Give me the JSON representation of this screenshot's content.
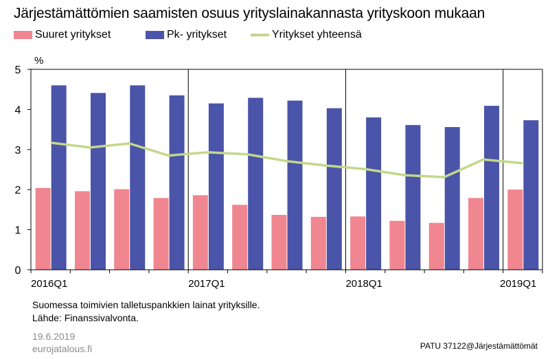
{
  "header": {
    "title": "Järjestämättömien saamisten osuus yrityslainakannasta yrityskoon mukaan"
  },
  "colors": {
    "large": "#f0868f",
    "sme": "#4a54a8",
    "total": "#c2d88a"
  },
  "chart_data": {
    "type": "bar",
    "unit_label": "%",
    "ylim": [
      0,
      5
    ],
    "yticks": [
      "0",
      "1",
      "2",
      "3",
      "4",
      "5"
    ],
    "categories": [
      "2016Q1",
      "2016Q2",
      "2016Q3",
      "2016Q4",
      "2017Q1",
      "2017Q2",
      "2017Q3",
      "2017Q4",
      "2018Q1",
      "2018Q2",
      "2018Q3",
      "2018Q4",
      "2019Q1"
    ],
    "x_tick_labels": [
      "2016Q1",
      "2017Q1",
      "2018Q1",
      "2019Q1"
    ],
    "grid": "vertical lines at year boundaries",
    "legend_position": "top",
    "series": [
      {
        "name": "Suuret yritykset",
        "type": "bar",
        "values": [
          2.04,
          1.96,
          2.01,
          1.79,
          1.86,
          1.62,
          1.37,
          1.32,
          1.33,
          1.22,
          1.17,
          1.79,
          2.0
        ]
      },
      {
        "name": "Pk- yritykset",
        "type": "bar",
        "values": [
          4.6,
          4.41,
          4.6,
          4.35,
          4.15,
          4.29,
          4.22,
          4.03,
          3.8,
          3.61,
          3.56,
          4.09,
          3.73
        ]
      },
      {
        "name": "Yritykset yhteensä",
        "type": "line",
        "values": [
          3.17,
          3.05,
          3.15,
          2.85,
          2.93,
          2.88,
          2.71,
          2.6,
          2.51,
          2.36,
          2.31,
          2.75,
          2.66
        ]
      }
    ]
  },
  "footer": {
    "note1": "Suomessa toimivien talletuspankkien lainat yrityksille.",
    "note2": "Lähde: Finanssivalvonta.",
    "date": "19.6.2019",
    "site": "eurojatalous.fi",
    "code": "PATU 37122@Järjestämättömät"
  }
}
